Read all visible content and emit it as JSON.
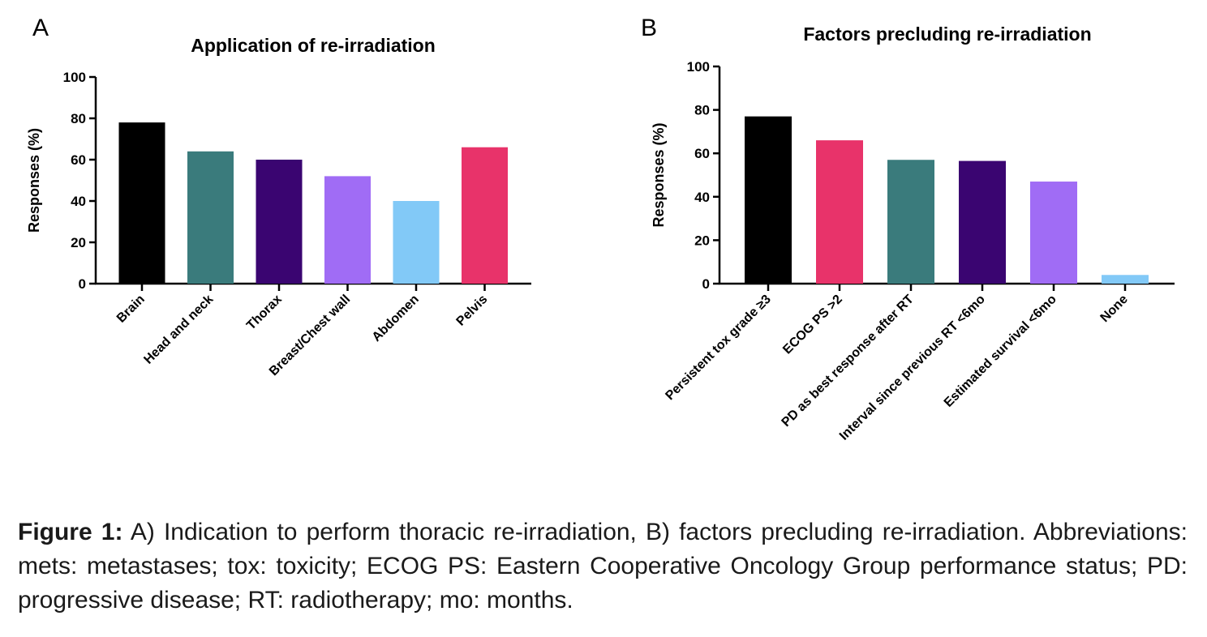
{
  "panels": [
    {
      "letter": "A"
    },
    {
      "letter": "B"
    }
  ],
  "chart_data": [
    {
      "type": "bar",
      "title": "Application of re-irradiation",
      "xlabel": "",
      "ylabel": "Responses (%)",
      "ylim": [
        0,
        100
      ],
      "yticks": [
        0,
        20,
        40,
        60,
        80,
        100
      ],
      "categories": [
        "Brain",
        "Head and neck",
        "Thorax",
        "Breast/Chest wall",
        "Abdomen",
        "Pelvis"
      ],
      "values": [
        78,
        64,
        60,
        52,
        40,
        66
      ],
      "colors": [
        "#000000",
        "#3a7b7c",
        "#3a0571",
        "#a06cf5",
        "#82c9f7",
        "#e8336a"
      ],
      "grid": false,
      "legend": "none"
    },
    {
      "type": "bar",
      "title": "Factors precluding re-irradiation",
      "xlabel": "",
      "ylabel": "Responses (%)",
      "ylim": [
        0,
        100
      ],
      "yticks": [
        0,
        20,
        40,
        60,
        80,
        100
      ],
      "categories": [
        "Persistent tox grade ≥3",
        "ECOG PS >2",
        "PD as best response after RT",
        "Interval since previous RT <6mo",
        "Estimated survival <6mo",
        "None"
      ],
      "values": [
        77,
        66,
        57,
        56.5,
        47,
        4
      ],
      "colors": [
        "#000000",
        "#e8336a",
        "#3a7b7c",
        "#3a0571",
        "#a06cf5",
        "#82c9f7"
      ],
      "grid": false,
      "legend": "none"
    }
  ],
  "caption": {
    "lead": "Figure 1:",
    "text": " A) Indication to perform thoracic re-irradiation, B) factors precluding re-irradiation. Abbreviations: mets: metastases; tox: toxicity; ECOG PS: Eastern Cooperative Oncology Group performance status; PD: progressive disease; RT: radiotherapy; mo: months."
  }
}
